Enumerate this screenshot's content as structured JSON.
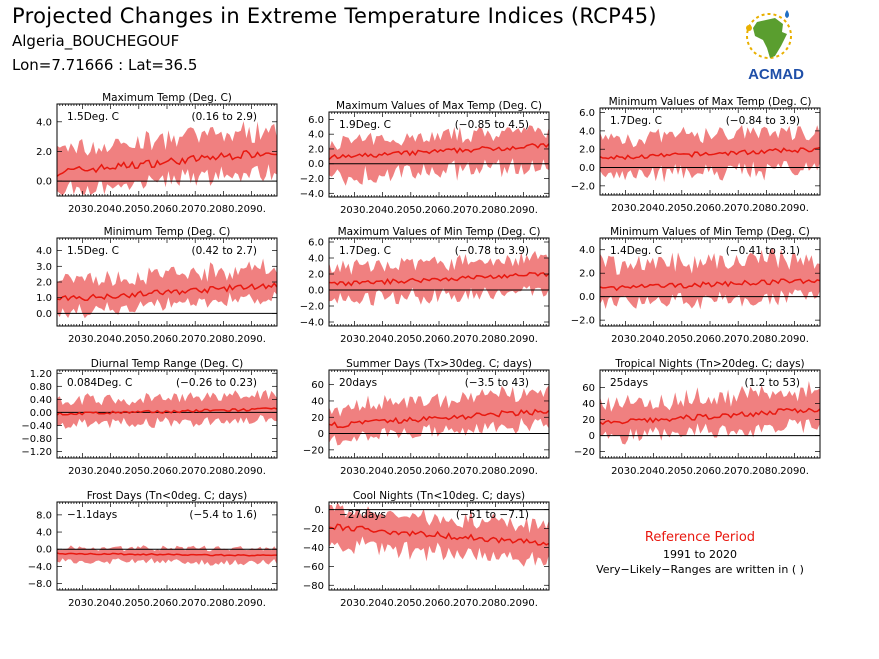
{
  "header": {
    "title": "Projected Changes in Extreme Temperature Indices (RCP45)",
    "location": "Algeria_BOUCHEGOUF",
    "coordinates": "Lon=7.71666 : Lat=36.5"
  },
  "logo": {
    "text": "ACMAD",
    "icon": "africa-map-logo"
  },
  "colors": {
    "band": "#f08080",
    "line": "#e8180f",
    "zero": "#000000",
    "reference": "#e8180f"
  },
  "reference": {
    "title": "Reference Period",
    "years": "1991 to 2020",
    "note": "Very−Likely−Ranges are written in ( )"
  },
  "chart_data": [
    {
      "type": "line",
      "title": "Maximum Temp (Deg. C)",
      "change": "1.5Deg. C",
      "range": "(0.16 to 2.9)",
      "x": [
        2021,
        2099
      ],
      "xticks": [
        "2030.",
        "2040.",
        "2050.",
        "2060.",
        "2070.",
        "2080.",
        "2090."
      ],
      "ylim": [
        -1.0,
        5.2
      ],
      "yticks": [
        "0.0",
        "2.0",
        "4.0"
      ],
      "start": 0.6,
      "end": 2.0,
      "lo_end": 0.5,
      "hi_end": 3.8
    },
    {
      "type": "line",
      "title": "Maximum Values of Max Temp (Deg. C)",
      "change": "1.9Deg. C",
      "range": "(−0.85 to 4.5)",
      "x": [
        2021,
        2099
      ],
      "xticks": [
        "2030.",
        "2040.",
        "2050.",
        "2060.",
        "2070.",
        "2080.",
        "2090."
      ],
      "ylim": [
        -4.5,
        7.0
      ],
      "yticks": [
        "−4.0",
        "−2.0",
        "0.0",
        "2.0",
        "4.0",
        "6.0"
      ],
      "start": 0.8,
      "end": 2.5,
      "lo_end": -0.8,
      "hi_end": 5.0
    },
    {
      "type": "line",
      "title": "Minimum Values of Max Temp (Deg. C)",
      "change": "1.7Deg. C",
      "range": "(−0.84 to 3.9)",
      "x": [
        2021,
        2099
      ],
      "xticks": [
        "2030.",
        "2040.",
        "2050.",
        "2060.",
        "2070.",
        "2080.",
        "2090."
      ],
      "ylim": [
        -3.0,
        6.5
      ],
      "yticks": [
        "−2.0",
        "0.0",
        "2.0",
        "4.0",
        "6.0"
      ],
      "start": 1.0,
      "end": 2.0,
      "lo_end": -0.5,
      "hi_end": 4.5
    },
    {
      "type": "line",
      "title": "Minimum Temp (Deg. C)",
      "change": "1.5Deg. C",
      "range": "(0.42 to 2.7)",
      "x": [
        2021,
        2099
      ],
      "xticks": [
        "2030.",
        "2040.",
        "2050.",
        "2060.",
        "2070.",
        "2080.",
        "2090."
      ],
      "ylim": [
        -0.8,
        4.8
      ],
      "yticks": [
        "0.0",
        "1.0",
        "2.0",
        "3.0",
        "4.0"
      ],
      "start": 0.9,
      "end": 1.8,
      "lo_end": 0.8,
      "hi_end": 3.2
    },
    {
      "type": "line",
      "title": "Maximum Values of Min Temp (Deg. C)",
      "change": "1.7Deg. C",
      "range": "(−0.78 to 3.9)",
      "x": [
        2021,
        2099
      ],
      "xticks": [
        "2030.",
        "2040.",
        "2050.",
        "2060.",
        "2070.",
        "2080.",
        "2090."
      ],
      "ylim": [
        -4.5,
        6.5
      ],
      "yticks": [
        "−4.0",
        "−2.0",
        "0.0",
        "2.0",
        "4.0",
        "6.0"
      ],
      "start": 0.7,
      "end": 2.0,
      "lo_end": -0.5,
      "hi_end": 4.5
    },
    {
      "type": "line",
      "title": "Minimum Values of Min Temp (Deg. C)",
      "change": "1.4Deg. C",
      "range": "(−0.41 to 3.1)",
      "x": [
        2021,
        2099
      ],
      "xticks": [
        "2030.",
        "2040.",
        "2050.",
        "2060.",
        "2070.",
        "2080.",
        "2090."
      ],
      "ylim": [
        -2.5,
        5.0
      ],
      "yticks": [
        "−2.0",
        "0.0",
        "2.0",
        "4.0"
      ],
      "start": 0.7,
      "end": 1.4,
      "lo_end": -0.2,
      "hi_end": 3.8
    },
    {
      "type": "line",
      "title": "Diurnal Temp Range (Deg. C)",
      "change": "0.084Deg. C",
      "range": "(−0.26 to 0.23)",
      "x": [
        2021,
        2099
      ],
      "xticks": [
        "2030.",
        "2040.",
        "2050.",
        "2060.",
        "2070.",
        "2080.",
        "2090."
      ],
      "ylim": [
        -1.4,
        1.3
      ],
      "yticks": [
        "−1.20",
        "−0.80",
        "−0.40",
        "0.00",
        "0.40",
        "0.80",
        "1.20"
      ],
      "start": -0.05,
      "end": 0.1,
      "lo_end": -0.3,
      "hi_end": 0.6
    },
    {
      "type": "line",
      "title": "Summer Days (Tx>30deg. C; days)",
      "change": "20days",
      "range": "(−3.5 to 43)",
      "x": [
        2021,
        2099
      ],
      "xticks": [
        "2030.",
        "2040.",
        "2050.",
        "2060.",
        "2070.",
        "2080.",
        "2090."
      ],
      "ylim": [
        -30,
        78
      ],
      "yticks": [
        "−20",
        "0",
        "20",
        "40",
        "60"
      ],
      "start": 10,
      "end": 28,
      "lo_end": 8,
      "hi_end": 55
    },
    {
      "type": "line",
      "title": "Tropical Nights (Tn>20deg. C; days)",
      "change": "25days",
      "range": "(1.2 to 53)",
      "x": [
        2021,
        2099
      ],
      "xticks": [
        "2030.",
        "2040.",
        "2050.",
        "2060.",
        "2070.",
        "2080.",
        "2090."
      ],
      "ylim": [
        -28,
        82
      ],
      "yticks": [
        "−20",
        "0",
        "20",
        "40",
        "60"
      ],
      "start": 15,
      "end": 33,
      "lo_end": 10,
      "hi_end": 62
    },
    {
      "type": "line",
      "title": "Frost Days (Tn<0deg. C; days)",
      "change": "−1.1days",
      "range": "(−5.4 to 1.6)",
      "x": [
        2021,
        2099
      ],
      "xticks": [
        "2030.",
        "2040.",
        "2050.",
        "2060.",
        "2070.",
        "2080.",
        "2090."
      ],
      "ylim": [
        -9.5,
        11
      ],
      "yticks": [
        "−8.0",
        "−4.0",
        "0.0",
        "4.0",
        "8.0"
      ],
      "start": -1.0,
      "end": -1.5,
      "lo_end": -3.5,
      "hi_end": 0.3
    },
    {
      "type": "line",
      "title": "Cool Nights (Tn<10deg. C; days)",
      "change": "−27days",
      "range": "(−51 to −7.1)",
      "x": [
        2021,
        2099
      ],
      "xticks": [
        "2030.",
        "2040.",
        "2050.",
        "2060.",
        "2070.",
        "2080.",
        "2090."
      ],
      "ylim": [
        -85,
        8
      ],
      "yticks": [
        "−80",
        "−60",
        "−40",
        "−20",
        "0."
      ],
      "start": -18,
      "end": -36,
      "lo_end": -58,
      "hi_end": -14
    }
  ]
}
